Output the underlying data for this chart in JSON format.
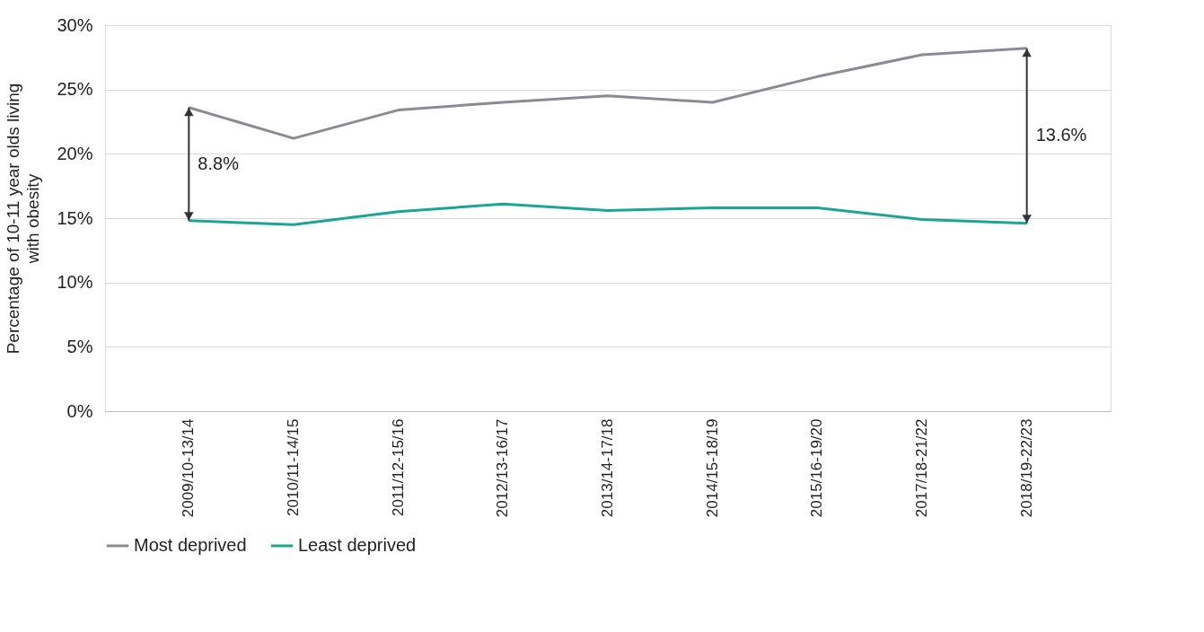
{
  "chart_data": {
    "type": "line",
    "ylabel": "Percentage of 10-11 year olds living with obesity",
    "categories": [
      "2009/10-13/14",
      "2010/11-14/15",
      "2011/12-15/16",
      "2012/13-16/17",
      "2013/14-17/18",
      "2014/15-18/19",
      "2015/16-19/20",
      "2017/18-21/22",
      "2018/19-22/23"
    ],
    "series": [
      {
        "name": "Most deprived",
        "color": "#8c8a94",
        "values": [
          23.6,
          21.2,
          23.4,
          24.0,
          24.5,
          24.0,
          26.0,
          27.7,
          28.2
        ]
      },
      {
        "name": "Least deprived",
        "color": "#1aa596",
        "values": [
          14.8,
          14.5,
          15.5,
          16.1,
          15.6,
          15.8,
          15.8,
          14.9,
          14.6
        ]
      }
    ],
    "ylim": [
      0,
      30
    ],
    "yticks": [
      {
        "value": 0,
        "label": "0%"
      },
      {
        "value": 5,
        "label": "5%"
      },
      {
        "value": 10,
        "label": "10%"
      },
      {
        "value": 15,
        "label": "15%"
      },
      {
        "value": 20,
        "label": "20%"
      },
      {
        "value": 25,
        "label": "25%"
      },
      {
        "value": 30,
        "label": "30%"
      }
    ],
    "annotations": [
      "8.8%",
      "13.6%"
    ],
    "grid": "y",
    "legend": "bottom",
    "marker": "none",
    "line_style": "solid"
  }
}
